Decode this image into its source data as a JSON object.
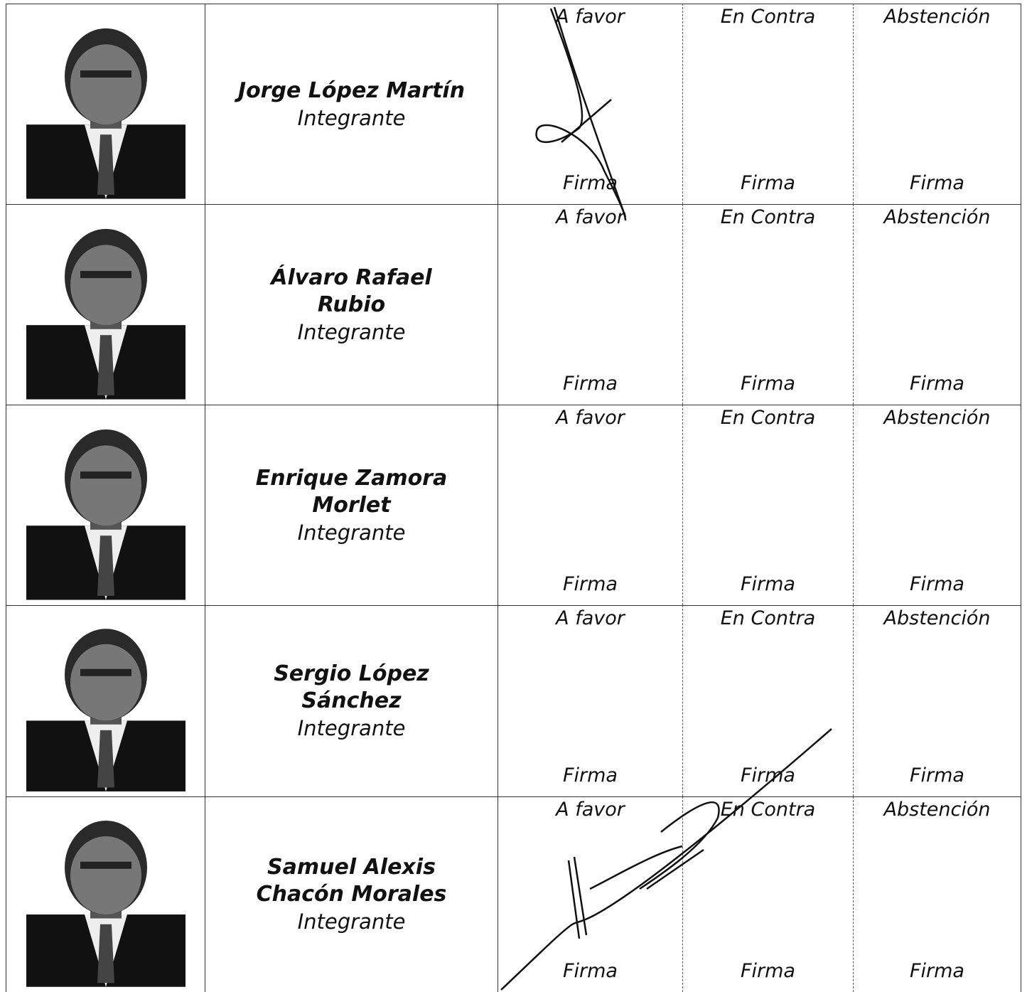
{
  "rows": [
    {
      "name": "Jorge López Martín",
      "role": "Integrante",
      "votes": [
        "A favor",
        "En Contra",
        "Abstención"
      ],
      "signatures": [
        "Firma",
        "Firma",
        "Firma"
      ]
    },
    {
      "name": "Álvaro Rafael Rubio",
      "role": "Integrante",
      "votes": [
        "A favor",
        "En Contra",
        "Abstención"
      ],
      "signatures": [
        "Firma",
        "Firma",
        "Firma"
      ]
    },
    {
      "name": "Enrique Zamora Morlet",
      "role": "Integrante",
      "votes": [
        "A favor",
        "En Contra",
        "Abstención"
      ],
      "signatures": [
        "Firma",
        "Firma",
        "Firma"
      ]
    },
    {
      "name": "Sergio López Sánchez",
      "role": "Integrante",
      "votes": [
        "A favor",
        "En Contra",
        "Abstención"
      ],
      "signatures": [
        "Firma",
        "Firma",
        "Firma"
      ]
    },
    {
      "name": "Samuel Alexis Chacón Morales",
      "role": "Integrante",
      "votes": [
        "A favor",
        "En Contra",
        "Abstención"
      ],
      "signatures": [
        "Firma",
        "Firma",
        "Firma"
      ]
    }
  ]
}
